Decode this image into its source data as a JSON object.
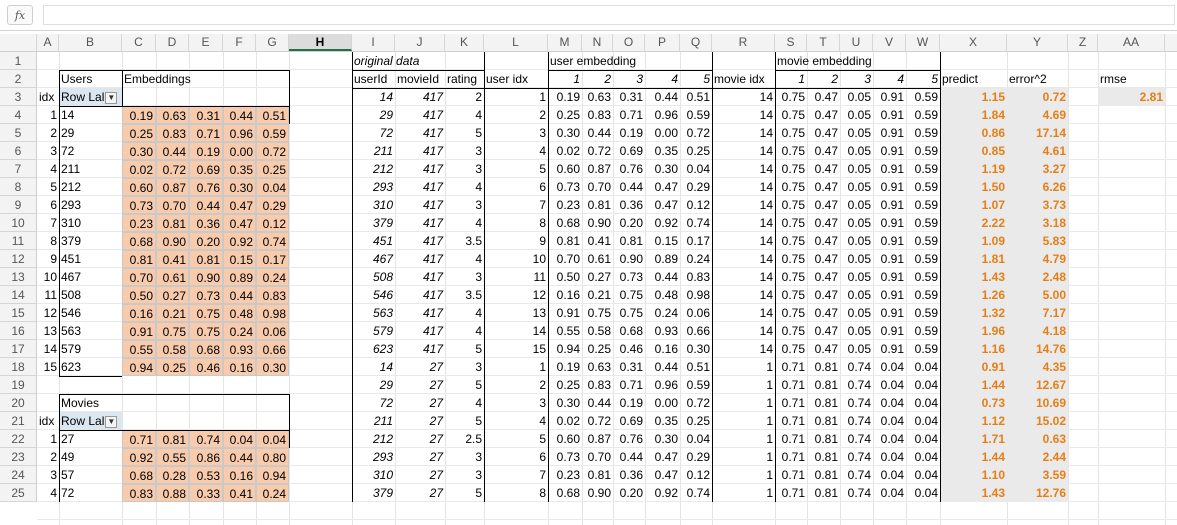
{
  "formula_bar": {
    "fx_label": "fx",
    "value": ""
  },
  "columns": [
    "A",
    "B",
    "C",
    "D",
    "E",
    "F",
    "G",
    "H",
    "I",
    "J",
    "K",
    "L",
    "M",
    "N",
    "O",
    "P",
    "Q",
    "R",
    "S",
    "T",
    "U",
    "V",
    "W",
    "X",
    "Y",
    "Z",
    "AA"
  ],
  "selected_column": "H",
  "rows": [
    1,
    2,
    3,
    4,
    5,
    6,
    7,
    8,
    9,
    10,
    11,
    12,
    13,
    14,
    15,
    16,
    17,
    18,
    19,
    20,
    21,
    22,
    23,
    24,
    25
  ],
  "labels": {
    "users": "Users",
    "embeddings": "Embeddings",
    "idx": "idx",
    "row_labels": "Row Lal",
    "movies": "Movies",
    "original_data": "original data",
    "userId": "userId",
    "movieId": "movieId",
    "rating": "rating",
    "user_idx": "user idx",
    "user_embedding": "user embedding",
    "movie_idx": "movie idx",
    "movie_embedding": "movie embedding",
    "emb_nums": [
      "1",
      "2",
      "3",
      "4",
      "5"
    ],
    "predict": "predict",
    "error2": "error^2",
    "rmse": "rmse",
    "rmse_value": "2.81"
  },
  "users_table": [
    {
      "idx": "1",
      "id": "14",
      "emb": [
        "0.19",
        "0.63",
        "0.31",
        "0.44",
        "0.51"
      ]
    },
    {
      "idx": "2",
      "id": "29",
      "emb": [
        "0.25",
        "0.83",
        "0.71",
        "0.96",
        "0.59"
      ]
    },
    {
      "idx": "3",
      "id": "72",
      "emb": [
        "0.30",
        "0.44",
        "0.19",
        "0.00",
        "0.72"
      ]
    },
    {
      "idx": "4",
      "id": "211",
      "emb": [
        "0.02",
        "0.72",
        "0.69",
        "0.35",
        "0.25"
      ]
    },
    {
      "idx": "5",
      "id": "212",
      "emb": [
        "0.60",
        "0.87",
        "0.76",
        "0.30",
        "0.04"
      ]
    },
    {
      "idx": "6",
      "id": "293",
      "emb": [
        "0.73",
        "0.70",
        "0.44",
        "0.47",
        "0.29"
      ]
    },
    {
      "idx": "7",
      "id": "310",
      "emb": [
        "0.23",
        "0.81",
        "0.36",
        "0.47",
        "0.12"
      ]
    },
    {
      "idx": "8",
      "id": "379",
      "emb": [
        "0.68",
        "0.90",
        "0.20",
        "0.92",
        "0.74"
      ]
    },
    {
      "idx": "9",
      "id": "451",
      "emb": [
        "0.81",
        "0.41",
        "0.81",
        "0.15",
        "0.17"
      ]
    },
    {
      "idx": "10",
      "id": "467",
      "emb": [
        "0.70",
        "0.61",
        "0.90",
        "0.89",
        "0.24"
      ]
    },
    {
      "idx": "11",
      "id": "508",
      "emb": [
        "0.50",
        "0.27",
        "0.73",
        "0.44",
        "0.83"
      ]
    },
    {
      "idx": "12",
      "id": "546",
      "emb": [
        "0.16",
        "0.21",
        "0.75",
        "0.48",
        "0.98"
      ]
    },
    {
      "idx": "13",
      "id": "563",
      "emb": [
        "0.91",
        "0.75",
        "0.75",
        "0.24",
        "0.06"
      ]
    },
    {
      "idx": "14",
      "id": "579",
      "emb": [
        "0.55",
        "0.58",
        "0.68",
        "0.93",
        "0.66"
      ]
    },
    {
      "idx": "15",
      "id": "623",
      "emb": [
        "0.94",
        "0.25",
        "0.46",
        "0.16",
        "0.30"
      ]
    }
  ],
  "movies_table": [
    {
      "idx": "1",
      "id": "27",
      "emb": [
        "0.71",
        "0.81",
        "0.74",
        "0.04",
        "0.04"
      ]
    },
    {
      "idx": "2",
      "id": "49",
      "emb": [
        "0.92",
        "0.55",
        "0.86",
        "0.44",
        "0.80"
      ]
    },
    {
      "idx": "3",
      "id": "57",
      "emb": [
        "0.68",
        "0.28",
        "0.53",
        "0.16",
        "0.94"
      ]
    },
    {
      "idx": "4",
      "id": "72",
      "emb": [
        "0.83",
        "0.88",
        "0.33",
        "0.41",
        "0.24"
      ]
    }
  ],
  "data_rows": [
    {
      "userId": "14",
      "movieId": "417",
      "rating": "2",
      "uidx": "1",
      "uemb": [
        "0.19",
        "0.63",
        "0.31",
        "0.44",
        "0.51"
      ],
      "midx": "14",
      "memb": [
        "0.75",
        "0.47",
        "0.05",
        "0.91",
        "0.59"
      ],
      "predict": "1.15",
      "err": "0.72"
    },
    {
      "userId": "29",
      "movieId": "417",
      "rating": "4",
      "uidx": "2",
      "uemb": [
        "0.25",
        "0.83",
        "0.71",
        "0.96",
        "0.59"
      ],
      "midx": "14",
      "memb": [
        "0.75",
        "0.47",
        "0.05",
        "0.91",
        "0.59"
      ],
      "predict": "1.84",
      "err": "4.69"
    },
    {
      "userId": "72",
      "movieId": "417",
      "rating": "5",
      "uidx": "3",
      "uemb": [
        "0.30",
        "0.44",
        "0.19",
        "0.00",
        "0.72"
      ],
      "midx": "14",
      "memb": [
        "0.75",
        "0.47",
        "0.05",
        "0.91",
        "0.59"
      ],
      "predict": "0.86",
      "err": "17.14"
    },
    {
      "userId": "211",
      "movieId": "417",
      "rating": "3",
      "uidx": "4",
      "uemb": [
        "0.02",
        "0.72",
        "0.69",
        "0.35",
        "0.25"
      ],
      "midx": "14",
      "memb": [
        "0.75",
        "0.47",
        "0.05",
        "0.91",
        "0.59"
      ],
      "predict": "0.85",
      "err": "4.61"
    },
    {
      "userId": "212",
      "movieId": "417",
      "rating": "3",
      "uidx": "5",
      "uemb": [
        "0.60",
        "0.87",
        "0.76",
        "0.30",
        "0.04"
      ],
      "midx": "14",
      "memb": [
        "0.75",
        "0.47",
        "0.05",
        "0.91",
        "0.59"
      ],
      "predict": "1.19",
      "err": "3.27"
    },
    {
      "userId": "293",
      "movieId": "417",
      "rating": "4",
      "uidx": "6",
      "uemb": [
        "0.73",
        "0.70",
        "0.44",
        "0.47",
        "0.29"
      ],
      "midx": "14",
      "memb": [
        "0.75",
        "0.47",
        "0.05",
        "0.91",
        "0.59"
      ],
      "predict": "1.50",
      "err": "6.26"
    },
    {
      "userId": "310",
      "movieId": "417",
      "rating": "3",
      "uidx": "7",
      "uemb": [
        "0.23",
        "0.81",
        "0.36",
        "0.47",
        "0.12"
      ],
      "midx": "14",
      "memb": [
        "0.75",
        "0.47",
        "0.05",
        "0.91",
        "0.59"
      ],
      "predict": "1.07",
      "err": "3.73"
    },
    {
      "userId": "379",
      "movieId": "417",
      "rating": "4",
      "uidx": "8",
      "uemb": [
        "0.68",
        "0.90",
        "0.20",
        "0.92",
        "0.74"
      ],
      "midx": "14",
      "memb": [
        "0.75",
        "0.47",
        "0.05",
        "0.91",
        "0.59"
      ],
      "predict": "2.22",
      "err": "3.18"
    },
    {
      "userId": "451",
      "movieId": "417",
      "rating": "3.5",
      "uidx": "9",
      "uemb": [
        "0.81",
        "0.41",
        "0.81",
        "0.15",
        "0.17"
      ],
      "midx": "14",
      "memb": [
        "0.75",
        "0.47",
        "0.05",
        "0.91",
        "0.59"
      ],
      "predict": "1.09",
      "err": "5.83"
    },
    {
      "userId": "467",
      "movieId": "417",
      "rating": "4",
      "uidx": "10",
      "uemb": [
        "0.70",
        "0.61",
        "0.90",
        "0.89",
        "0.24"
      ],
      "midx": "14",
      "memb": [
        "0.75",
        "0.47",
        "0.05",
        "0.91",
        "0.59"
      ],
      "predict": "1.81",
      "err": "4.79"
    },
    {
      "userId": "508",
      "movieId": "417",
      "rating": "3",
      "uidx": "11",
      "uemb": [
        "0.50",
        "0.27",
        "0.73",
        "0.44",
        "0.83"
      ],
      "midx": "14",
      "memb": [
        "0.75",
        "0.47",
        "0.05",
        "0.91",
        "0.59"
      ],
      "predict": "1.43",
      "err": "2.48"
    },
    {
      "userId": "546",
      "movieId": "417",
      "rating": "3.5",
      "uidx": "12",
      "uemb": [
        "0.16",
        "0.21",
        "0.75",
        "0.48",
        "0.98"
      ],
      "midx": "14",
      "memb": [
        "0.75",
        "0.47",
        "0.05",
        "0.91",
        "0.59"
      ],
      "predict": "1.26",
      "err": "5.00"
    },
    {
      "userId": "563",
      "movieId": "417",
      "rating": "4",
      "uidx": "13",
      "uemb": [
        "0.91",
        "0.75",
        "0.75",
        "0.24",
        "0.06"
      ],
      "midx": "14",
      "memb": [
        "0.75",
        "0.47",
        "0.05",
        "0.91",
        "0.59"
      ],
      "predict": "1.32",
      "err": "7.17"
    },
    {
      "userId": "579",
      "movieId": "417",
      "rating": "4",
      "uidx": "14",
      "uemb": [
        "0.55",
        "0.58",
        "0.68",
        "0.93",
        "0.66"
      ],
      "midx": "14",
      "memb": [
        "0.75",
        "0.47",
        "0.05",
        "0.91",
        "0.59"
      ],
      "predict": "1.96",
      "err": "4.18"
    },
    {
      "userId": "623",
      "movieId": "417",
      "rating": "5",
      "uidx": "15",
      "uemb": [
        "0.94",
        "0.25",
        "0.46",
        "0.16",
        "0.30"
      ],
      "midx": "14",
      "memb": [
        "0.75",
        "0.47",
        "0.05",
        "0.91",
        "0.59"
      ],
      "predict": "1.16",
      "err": "14.76"
    },
    {
      "userId": "14",
      "movieId": "27",
      "rating": "3",
      "uidx": "1",
      "uemb": [
        "0.19",
        "0.63",
        "0.31",
        "0.44",
        "0.51"
      ],
      "midx": "1",
      "memb": [
        "0.71",
        "0.81",
        "0.74",
        "0.04",
        "0.04"
      ],
      "predict": "0.91",
      "err": "4.35"
    },
    {
      "userId": "29",
      "movieId": "27",
      "rating": "5",
      "uidx": "2",
      "uemb": [
        "0.25",
        "0.83",
        "0.71",
        "0.96",
        "0.59"
      ],
      "midx": "1",
      "memb": [
        "0.71",
        "0.81",
        "0.74",
        "0.04",
        "0.04"
      ],
      "predict": "1.44",
      "err": "12.67"
    },
    {
      "userId": "72",
      "movieId": "27",
      "rating": "4",
      "uidx": "3",
      "uemb": [
        "0.30",
        "0.44",
        "0.19",
        "0.00",
        "0.72"
      ],
      "midx": "1",
      "memb": [
        "0.71",
        "0.81",
        "0.74",
        "0.04",
        "0.04"
      ],
      "predict": "0.73",
      "err": "10.69"
    },
    {
      "userId": "211",
      "movieId": "27",
      "rating": "5",
      "uidx": "4",
      "uemb": [
        "0.02",
        "0.72",
        "0.69",
        "0.35",
        "0.25"
      ],
      "midx": "1",
      "memb": [
        "0.71",
        "0.81",
        "0.74",
        "0.04",
        "0.04"
      ],
      "predict": "1.12",
      "err": "15.02"
    },
    {
      "userId": "212",
      "movieId": "27",
      "rating": "2.5",
      "uidx": "5",
      "uemb": [
        "0.60",
        "0.87",
        "0.76",
        "0.30",
        "0.04"
      ],
      "midx": "1",
      "memb": [
        "0.71",
        "0.81",
        "0.74",
        "0.04",
        "0.04"
      ],
      "predict": "1.71",
      "err": "0.63"
    },
    {
      "userId": "293",
      "movieId": "27",
      "rating": "3",
      "uidx": "6",
      "uemb": [
        "0.73",
        "0.70",
        "0.44",
        "0.47",
        "0.29"
      ],
      "midx": "1",
      "memb": [
        "0.71",
        "0.81",
        "0.74",
        "0.04",
        "0.04"
      ],
      "predict": "1.44",
      "err": "2.44"
    },
    {
      "userId": "310",
      "movieId": "27",
      "rating": "3",
      "uidx": "7",
      "uemb": [
        "0.23",
        "0.81",
        "0.36",
        "0.47",
        "0.12"
      ],
      "midx": "1",
      "memb": [
        "0.71",
        "0.81",
        "0.74",
        "0.04",
        "0.04"
      ],
      "predict": "1.10",
      "err": "3.59"
    },
    {
      "userId": "379",
      "movieId": "27",
      "rating": "5",
      "uidx": "8",
      "uemb": [
        "0.68",
        "0.90",
        "0.20",
        "0.92",
        "0.74"
      ],
      "midx": "1",
      "memb": [
        "0.71",
        "0.81",
        "0.74",
        "0.04",
        "0.04"
      ],
      "predict": "1.43",
      "err": "12.76"
    }
  ]
}
